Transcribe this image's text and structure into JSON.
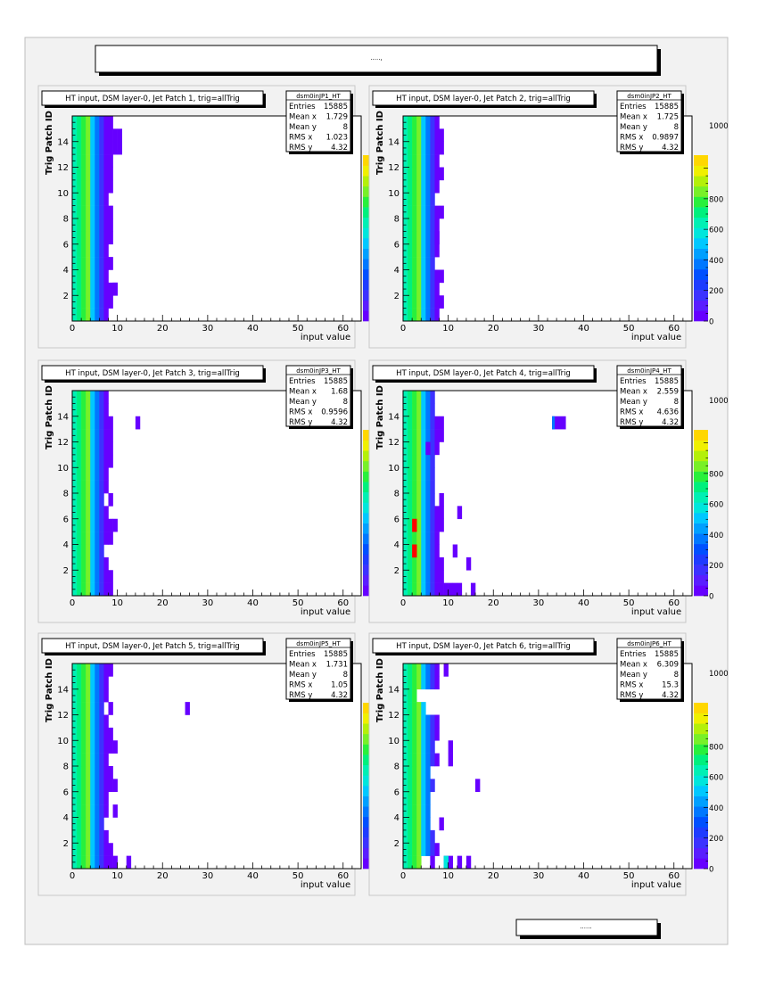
{
  "page": {
    "header_text": ".....,",
    "footer_text": "......"
  },
  "colors": {
    "page_bg": "#f2f2f2",
    "panel_bg": "#f2f2f2",
    "frame_bg": "#ffffff",
    "shadow": "#000000",
    "palette": [
      "#6600ff",
      "#5a1eff",
      "#3c32ff",
      "#1e3cff",
      "#0050ff",
      "#0078ff",
      "#00a0ff",
      "#00c8ff",
      "#00e6dc",
      "#00f0b4",
      "#00f07d",
      "#28f03c",
      "#78f028",
      "#b4f00a",
      "#f0f000",
      "#ffd700"
    ],
    "hot": "#ff0000"
  },
  "chart_data": [
    {
      "type": "heatmap",
      "title": "HT input, DSM layer-0, Jet Patch 1, trig=allTrig",
      "xlabel": "input value",
      "ylabel": "Trig Patch ID",
      "xlim": [
        0,
        64
      ],
      "ylim": [
        0,
        16
      ],
      "x_ticks": [
        "0",
        "10",
        "20",
        "30",
        "40",
        "50",
        "60"
      ],
      "y_ticks": [
        "2",
        "4",
        "6",
        "8",
        "10",
        "12",
        "14"
      ],
      "z_ticks": [
        "0",
        "200",
        "400",
        "600",
        "800",
        "1000"
      ],
      "stats": {
        "name": "dsm0inJP1_HT",
        "rows": [
          [
            "Entries",
            "15885"
          ],
          [
            "Mean x",
            "1.729"
          ],
          [
            "Mean y",
            "8"
          ],
          [
            "RMS x",
            "1.023"
          ],
          [
            "RMS y",
            "4.32"
          ]
        ]
      },
      "row_extent": [
        8,
        9,
        10,
        8,
        9,
        8,
        9,
        9,
        9,
        8,
        9,
        9,
        9,
        10,
        11,
        9
      ],
      "sparse": [
        {
          "x": 9,
          "y": 2,
          "w": 1
        },
        {
          "x": 10,
          "y": 13,
          "w": 1
        }
      ]
    },
    {
      "type": "heatmap",
      "title": "HT input, DSM layer-0, Jet Patch 2, trig=allTrig",
      "xlabel": "input value",
      "ylabel": "Trig Patch ID",
      "xlim": [
        0,
        64
      ],
      "ylim": [
        0,
        16
      ],
      "x_ticks": [
        "0",
        "10",
        "20",
        "30",
        "40",
        "50",
        "60"
      ],
      "y_ticks": [
        "2",
        "4",
        "6",
        "8",
        "10",
        "12",
        "14"
      ],
      "z_ticks": [
        "0",
        "200",
        "400",
        "600",
        "800",
        "1000"
      ],
      "stats": {
        "name": "dsm0inJP2_HT",
        "rows": [
          [
            "Entries",
            "15885"
          ],
          [
            "Mean x",
            "1.725"
          ],
          [
            "Mean y",
            "8"
          ],
          [
            "RMS x",
            "0.9897"
          ],
          [
            "RMS y",
            "4.32"
          ]
        ]
      },
      "row_extent": [
        8,
        9,
        8,
        8,
        7,
        7,
        8,
        8,
        9,
        7,
        8,
        9,
        8,
        8,
        9,
        8
      ],
      "sparse": [
        {
          "x": 8,
          "y": 3,
          "w": 1
        },
        {
          "x": 7,
          "y": 5,
          "w": 1
        },
        {
          "x": 7,
          "y": 6,
          "w": 1
        },
        {
          "x": 8,
          "y": 13,
          "w": 1
        }
      ]
    },
    {
      "type": "heatmap",
      "title": "HT input, DSM layer-0, Jet Patch 3, trig=allTrig",
      "xlabel": "input value",
      "ylabel": "Trig Patch ID",
      "xlim": [
        0,
        64
      ],
      "ylim": [
        0,
        16
      ],
      "x_ticks": [
        "0",
        "10",
        "20",
        "30",
        "40",
        "50",
        "60"
      ],
      "y_ticks": [
        "2",
        "4",
        "6",
        "8",
        "10",
        "12",
        "14"
      ],
      "z_ticks": [
        "0",
        "200",
        "400",
        "600",
        "800",
        "1000"
      ],
      "stats": {
        "name": "dsm0inJP3_HT",
        "rows": [
          [
            "Entries",
            "15885"
          ],
          [
            "Mean x",
            "1.68"
          ],
          [
            "Mean y",
            "8"
          ],
          [
            "RMS x",
            "0.9596"
          ],
          [
            "RMS y",
            "4.32"
          ]
        ]
      },
      "row_extent": [
        9,
        9,
        8,
        7,
        9,
        9,
        8,
        7,
        8,
        8,
        9,
        8,
        9,
        8,
        8,
        8
      ],
      "sparse": [
        {
          "x": 9,
          "y": 5,
          "w": 1
        },
        {
          "x": 8,
          "y": 7,
          "w": 1
        },
        {
          "x": 8,
          "y": 11,
          "w": 1
        },
        {
          "x": 8,
          "y": 13,
          "w": 1
        },
        {
          "x": 14,
          "y": 13,
          "w": 1
        }
      ]
    },
    {
      "type": "heatmap",
      "title": "HT input, DSM layer-0, Jet Patch 4, trig=allTrig",
      "xlabel": "input value",
      "ylabel": "Trig Patch ID",
      "xlim": [
        0,
        64
      ],
      "ylim": [
        0,
        16
      ],
      "x_ticks": [
        "0",
        "10",
        "20",
        "30",
        "40",
        "50",
        "60"
      ],
      "y_ticks": [
        "2",
        "4",
        "6",
        "8",
        "10",
        "12",
        "14"
      ],
      "z_ticks": [
        "0",
        "200",
        "400",
        "600",
        "800",
        "1000"
      ],
      "stats": {
        "name": "dsm0inJP4_HT",
        "rows": [
          [
            "Entries",
            "15885"
          ],
          [
            "Mean x",
            "2.559"
          ],
          [
            "Mean y",
            "8"
          ],
          [
            "RMS x",
            "4.636"
          ],
          [
            "RMS y",
            "4.32"
          ]
        ]
      },
      "row_extent": [
        13,
        9,
        9,
        8,
        8,
        9,
        9,
        7,
        7,
        7,
        7,
        7,
        8,
        8,
        7,
        7
      ],
      "sparse": [
        {
          "x": 15,
          "y": 0,
          "w": 1
        },
        {
          "x": 14,
          "y": 2,
          "w": 1
        },
        {
          "x": 11,
          "y": 3,
          "w": 1
        },
        {
          "x": 12,
          "y": 6,
          "w": 1
        },
        {
          "x": 8,
          "y": 7,
          "w": 1
        },
        {
          "x": 5,
          "y": 11,
          "w": 1
        },
        {
          "x": 7,
          "y": 11,
          "w": 1
        },
        {
          "x": 8,
          "y": 12,
          "w": 1
        },
        {
          "x": 8,
          "y": 13,
          "w": 1
        },
        {
          "x": 33,
          "y": 13,
          "w": 3
        }
      ],
      "hot": [
        {
          "x": 2,
          "y": 3
        },
        {
          "x": 2,
          "y": 5
        }
      ]
    },
    {
      "type": "heatmap",
      "title": "HT input, DSM layer-0, Jet Patch 5, trig=allTrig",
      "xlabel": "input value",
      "ylabel": "Trig Patch ID",
      "xlim": [
        0,
        64
      ],
      "ylim": [
        0,
        16
      ],
      "x_ticks": [
        "0",
        "10",
        "20",
        "30",
        "40",
        "50",
        "60"
      ],
      "y_ticks": [
        "2",
        "4",
        "6",
        "8",
        "10",
        "12",
        "14"
      ],
      "z_ticks": [
        "0",
        "200",
        "400",
        "600",
        "800",
        "1000"
      ],
      "stats": {
        "name": "dsm0inJP5_HT",
        "rows": [
          [
            "Entries",
            "15885"
          ],
          [
            "Mean x",
            "1.731"
          ],
          [
            "Mean y",
            "8"
          ],
          [
            "RMS x",
            "1.05"
          ],
          [
            "RMS y",
            "4.32"
          ]
        ]
      },
      "row_extent": [
        10,
        9,
        8,
        7,
        8,
        8,
        10,
        9,
        8,
        10,
        9,
        8,
        7,
        8,
        8,
        9
      ],
      "sparse": [
        {
          "x": 12,
          "y": 0,
          "w": 1
        },
        {
          "x": 9,
          "y": 4,
          "w": 1
        },
        {
          "x": 8,
          "y": 12,
          "w": 1
        },
        {
          "x": 25,
          "y": 12,
          "w": 1
        }
      ]
    },
    {
      "type": "heatmap",
      "title": "HT input, DSM layer-0, Jet Patch 6, trig=allTrig",
      "xlabel": "input value",
      "ylabel": "Trig Patch ID",
      "xlim": [
        0,
        64
      ],
      "ylim": [
        0,
        16
      ],
      "x_ticks": [
        "0",
        "10",
        "20",
        "30",
        "40",
        "50",
        "60"
      ],
      "y_ticks": [
        "2",
        "4",
        "6",
        "8",
        "10",
        "12",
        "14"
      ],
      "z_ticks": [
        "0",
        "200",
        "400",
        "600",
        "800",
        "1000"
      ],
      "stats": {
        "name": "dsm0inJP6_HT",
        "rows": [
          [
            "Entries",
            "15885"
          ],
          [
            "Mean x",
            "6.309"
          ],
          [
            "Mean y",
            "8"
          ],
          [
            "RMS x",
            "15.3"
          ],
          [
            "RMS y",
            "4.32"
          ]
        ]
      },
      "row_extent": [
        4,
        8,
        7,
        6,
        6,
        6,
        7,
        6,
        8,
        7,
        8,
        7,
        5,
        3,
        8,
        8
      ],
      "sparse": [
        {
          "x": 6,
          "y": 0,
          "w": 1
        },
        {
          "x": 9,
          "y": 0,
          "w": 2
        },
        {
          "x": 12,
          "y": 0,
          "w": 1
        },
        {
          "x": 14,
          "y": 0,
          "w": 1
        },
        {
          "x": 8,
          "y": 3,
          "w": 1
        },
        {
          "x": 16,
          "y": 6,
          "w": 1
        },
        {
          "x": 10,
          "y": 8,
          "w": 1
        },
        {
          "x": 10,
          "y": 9,
          "w": 1
        },
        {
          "x": 7,
          "y": 11,
          "w": 1
        },
        {
          "x": 9,
          "y": 15,
          "w": 1
        }
      ],
      "bright": [
        {
          "x": 9,
          "y": 0,
          "c": "#00e6dc"
        }
      ]
    }
  ]
}
